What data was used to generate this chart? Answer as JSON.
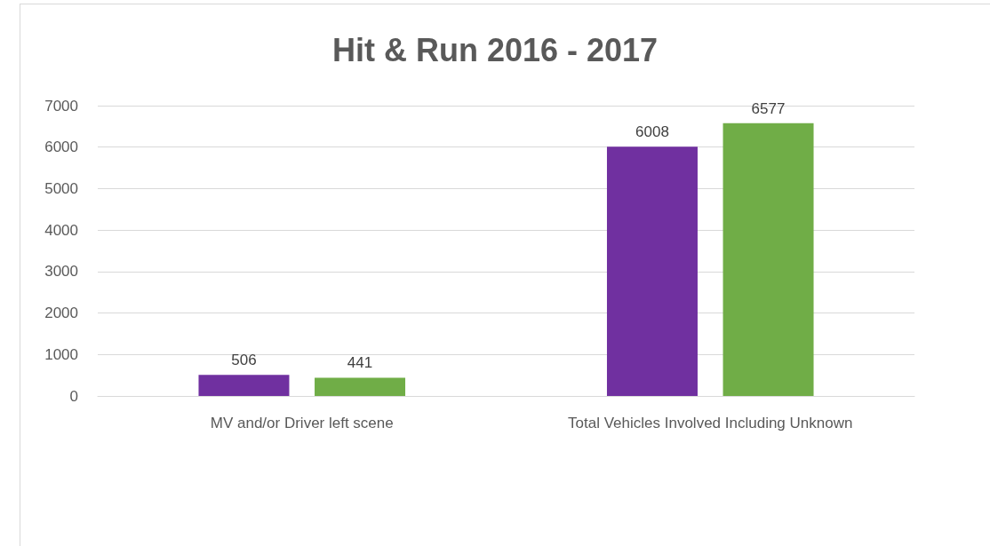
{
  "chart_data": {
    "type": "bar",
    "title": "Hit & Run 2016 - 2017",
    "categories": [
      "MV and/or Driver left scene",
      "Total Vehicles Involved Including Unknown"
    ],
    "series": [
      {
        "color": "#7030a0",
        "values": [
          506,
          6008
        ]
      },
      {
        "color": "#70ad47",
        "values": [
          441,
          6577
        ]
      }
    ],
    "ylim": [
      0,
      7000
    ],
    "yticks": [
      0,
      1000,
      2000,
      3000,
      4000,
      5000,
      6000,
      7000
    ],
    "grid": "y",
    "data_labels": true
  }
}
